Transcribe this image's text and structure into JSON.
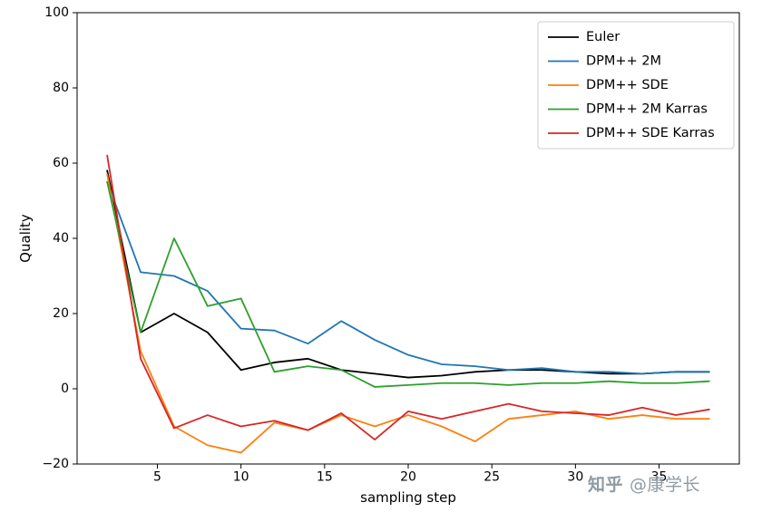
{
  "figure": {
    "background": "#ffffff"
  },
  "chart_data": {
    "type": "line",
    "title": "",
    "xlabel": "sampling step",
    "ylabel": "Quality",
    "xlim": [
      0.2,
      39.8
    ],
    "ylim": [
      -20,
      100
    ],
    "xticks": [
      5,
      10,
      15,
      20,
      25,
      30,
      35
    ],
    "xtick_labels": [
      "5",
      "10",
      "15",
      "20",
      "25",
      "30",
      "35"
    ],
    "yticks": [
      -20,
      0,
      20,
      40,
      60,
      80,
      100
    ],
    "ytick_labels": [
      "−20",
      "0",
      "20",
      "40",
      "60",
      "80",
      "100"
    ],
    "grid": false,
    "legend_position": "upper right",
    "legend_border_color": "#cccccc",
    "x": [
      2,
      4,
      6,
      8,
      10,
      12,
      14,
      16,
      18,
      20,
      22,
      24,
      26,
      28,
      30,
      32,
      34,
      36,
      38
    ],
    "series": [
      {
        "name": "Euler",
        "color": "#000000",
        "values": [
          58,
          15,
          20,
          15,
          5,
          7,
          8,
          5,
          4,
          3,
          3.5,
          4.5,
          5,
          5,
          4.5,
          4,
          4,
          4.5,
          4.5
        ]
      },
      {
        "name": "DPM++ 2M",
        "color": "#1f77b4",
        "values": [
          55,
          31,
          30,
          26,
          16,
          15.5,
          12,
          18,
          13,
          9,
          6.5,
          6,
          5,
          5.5,
          4.5,
          4.5,
          4,
          4.5,
          4.5
        ]
      },
      {
        "name": "DPM++ SDE",
        "color": "#ff7f0e",
        "values": [
          57,
          10,
          -10,
          -15,
          -17,
          -9,
          -11,
          -7,
          -10,
          -7,
          -10,
          -14,
          -8,
          -7,
          -6,
          -8,
          -7,
          -8,
          -8
        ]
      },
      {
        "name": "DPM++ 2M Karras",
        "color": "#2ca02c",
        "values": [
          55,
          15,
          40,
          22,
          24,
          4.5,
          6,
          5,
          0.5,
          1,
          1.5,
          1.5,
          1,
          1.5,
          1.5,
          2,
          1.5,
          1.5,
          2
        ]
      },
      {
        "name": "DPM++ SDE Karras",
        "color": "#d62728",
        "values": [
          62,
          8,
          -10.5,
          -7,
          -10,
          -8.5,
          -11,
          -6.5,
          -13.5,
          -6,
          -8,
          -6,
          -4,
          -6,
          -6.5,
          -7,
          -5,
          -7,
          -5.5
        ]
      }
    ]
  },
  "watermark": {
    "logo": "知乎",
    "handle": "@康学长",
    "color": "#8f9ba3"
  }
}
